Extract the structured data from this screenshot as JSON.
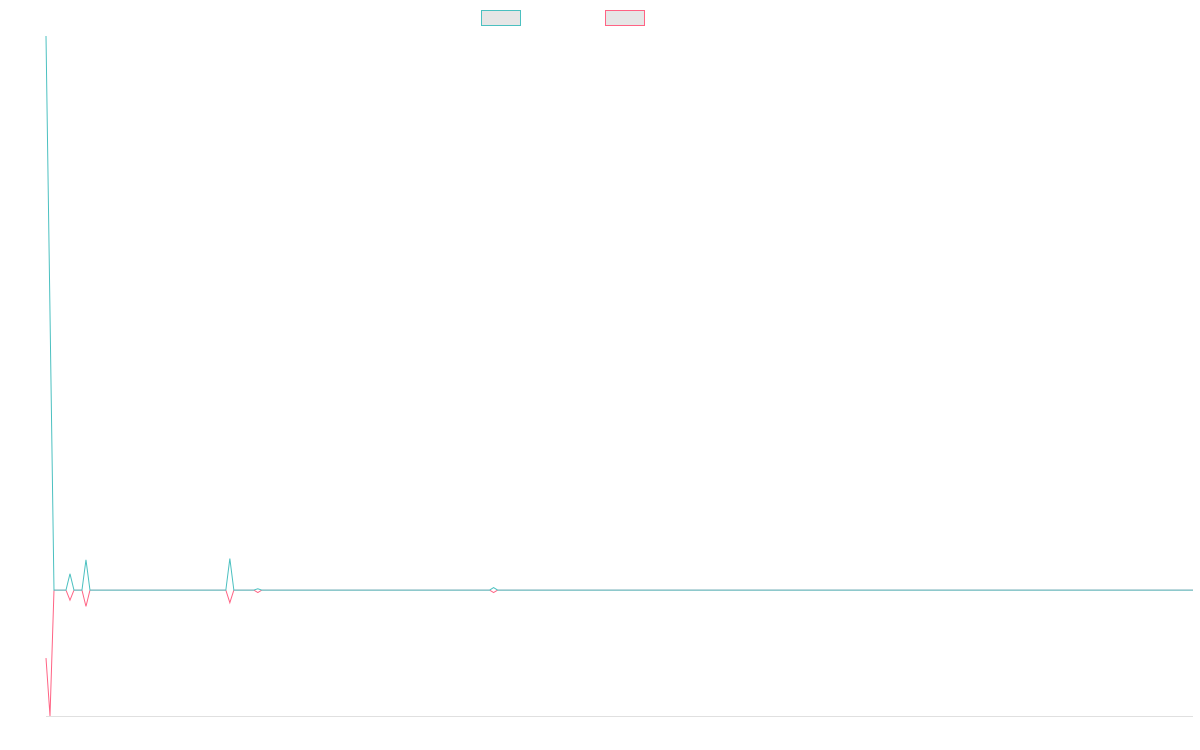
{
  "chart_data": {
    "type": "line",
    "x": [
      0,
      1,
      2,
      5,
      6,
      7,
      9,
      10,
      11,
      45,
      46,
      47,
      52,
      53,
      54,
      111,
      112,
      113,
      287
    ],
    "xlim": [
      0,
      287
    ],
    "ylim": [
      -1,
      4.4
    ],
    "series": [
      {
        "color": "#ff6384",
        "values": [
          -0.54,
          -1,
          0,
          0,
          -0.08,
          0,
          0,
          -0.13,
          0,
          0,
          -0.1,
          0,
          0,
          -0.02,
          0,
          0,
          -0.02,
          0,
          0
        ]
      },
      {
        "color": "#4bc0c0",
        "values": [
          4.4,
          2.2,
          0,
          0,
          0.13,
          0,
          0,
          0.24,
          0,
          0,
          0.25,
          0,
          0,
          0.01,
          0,
          0,
          0.02,
          0,
          0
        ]
      }
    ]
  }
}
